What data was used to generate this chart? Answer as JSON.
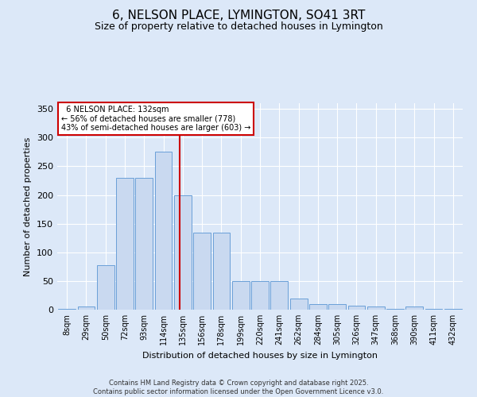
{
  "title": "6, NELSON PLACE, LYMINGTON, SO41 3RT",
  "subtitle": "Size of property relative to detached houses in Lymington",
  "xlabel": "Distribution of detached houses by size in Lymington",
  "ylabel": "Number of detached properties",
  "categories": [
    "8sqm",
    "29sqm",
    "50sqm",
    "72sqm",
    "93sqm",
    "114sqm",
    "135sqm",
    "156sqm",
    "178sqm",
    "199sqm",
    "220sqm",
    "241sqm",
    "262sqm",
    "284sqm",
    "305sqm",
    "326sqm",
    "347sqm",
    "368sqm",
    "390sqm",
    "411sqm",
    "432sqm"
  ],
  "values": [
    2,
    5,
    78,
    230,
    230,
    275,
    200,
    135,
    135,
    50,
    50,
    50,
    20,
    10,
    10,
    7,
    5,
    2,
    5,
    2,
    2
  ],
  "bar_color": "#c9d9f0",
  "bar_edge_color": "#6a9fd8",
  "ref_line_label": "6 NELSON PLACE: 132sqm",
  "ref_pct_smaller": "56% of detached houses are smaller (778)",
  "ref_pct_larger": "43% of semi-detached houses are larger (603)",
  "annotation_box_color": "#ffffff",
  "annotation_box_edge": "#cc0000",
  "ref_line_color": "#cc0000",
  "background_color": "#dce8f8",
  "grid_color": "#ffffff",
  "ylim": [
    0,
    360
  ],
  "yticks": [
    0,
    50,
    100,
    150,
    200,
    250,
    300,
    350
  ],
  "footer": "Contains HM Land Registry data © Crown copyright and database right 2025.\nContains public sector information licensed under the Open Government Licence v3.0.",
  "title_fontsize": 11,
  "subtitle_fontsize": 9
}
